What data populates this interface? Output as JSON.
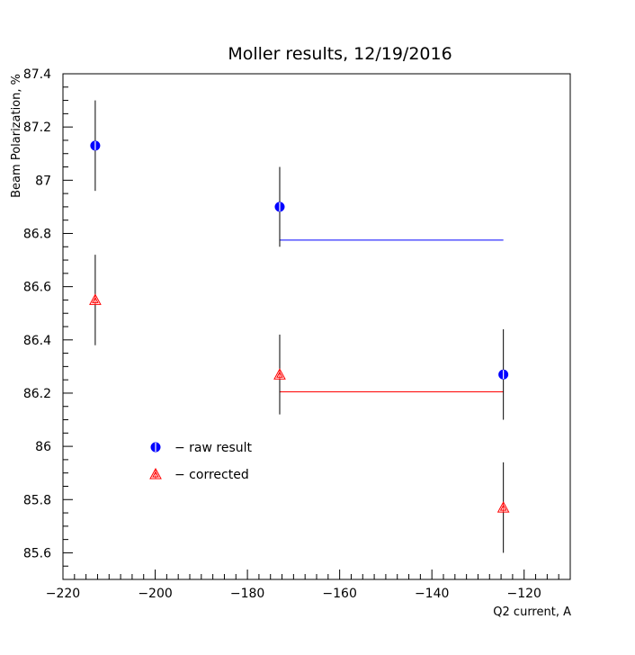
{
  "chart_data": {
    "type": "scatter",
    "title": "Moller results, 12/19/2016",
    "xlabel": "Q2 current, A",
    "ylabel": "Beam Polarization, %",
    "xlim": [
      -220,
      -110
    ],
    "ylim": [
      85.5,
      87.4
    ],
    "x_ticks": [
      -220,
      -200,
      -180,
      -160,
      -140,
      -120
    ],
    "y_ticks": [
      85.6,
      85.8,
      86,
      86.2,
      86.4,
      86.6,
      86.8,
      87,
      87.2,
      87.4
    ],
    "x_tick_labels": [
      "−220",
      "−200",
      "−180",
      "−160",
      "−140",
      "−120"
    ],
    "y_tick_labels": [
      "85.6",
      "85.8",
      "86",
      "86.2",
      "86.4",
      "86.6",
      "86.8",
      "87",
      "87.2",
      "87.4"
    ],
    "grid": false,
    "legend_position": "lower-left",
    "series": [
      {
        "name": "− raw result",
        "color": "#0000ff",
        "marker": "circle",
        "points": [
          {
            "x": -213,
            "y": 87.13,
            "err": 0.17
          },
          {
            "x": -173,
            "y": 86.9,
            "err": 0.15
          },
          {
            "x": -124.5,
            "y": 86.27,
            "err": 0.17
          }
        ],
        "fit_line": {
          "x1": -173,
          "x2": -124.5,
          "y": 86.775
        }
      },
      {
        "name": "− corrected",
        "color": "#ff0000",
        "marker": "triangle",
        "points": [
          {
            "x": -213,
            "y": 86.55,
            "err": 0.17
          },
          {
            "x": -173,
            "y": 86.27,
            "err": 0.15
          },
          {
            "x": -124.5,
            "y": 85.77,
            "err": 0.17
          }
        ],
        "fit_line": {
          "x1": -173,
          "x2": -124.5,
          "y": 86.205
        }
      }
    ]
  }
}
